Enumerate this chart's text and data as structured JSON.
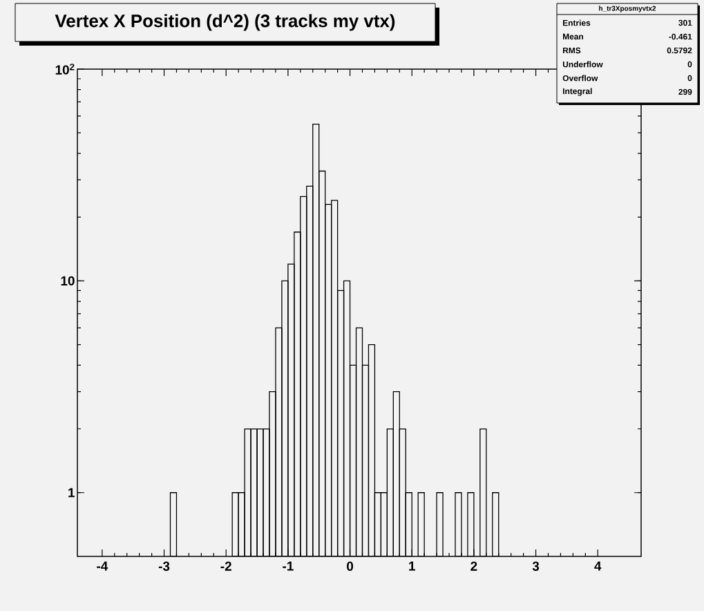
{
  "chart_data": {
    "type": "histogram",
    "title": "Vertex X Position (d^2) (3 tracks my vtx)",
    "bins": [
      -2.9,
      -2.8,
      -2.7,
      -2.6,
      -2.5,
      -2.4,
      -2.3,
      -2.2,
      -2.1,
      -2.0,
      -1.9,
      -1.8,
      -1.7,
      -1.6,
      -1.5,
      -1.4,
      -1.3,
      -1.2,
      -1.1,
      -1.0,
      -0.9,
      -0.8,
      -0.7,
      -0.6,
      -0.5,
      -0.4,
      -0.3,
      -0.2,
      -0.1,
      0.0,
      0.1,
      0.2,
      0.3,
      0.4,
      0.5,
      0.6,
      0.7,
      0.8,
      0.9,
      1.0,
      1.1,
      1.2,
      1.3,
      1.4,
      1.5,
      1.6,
      1.7,
      1.8,
      1.9,
      2.0,
      2.1,
      2.2,
      2.3,
      2.4
    ],
    "values": [
      1,
      null,
      null,
      null,
      null,
      null,
      null,
      null,
      null,
      null,
      1,
      1,
      2,
      2,
      2,
      2,
      3,
      6,
      10,
      12,
      17,
      25,
      28,
      55,
      33,
      23,
      24,
      9,
      10,
      4,
      6,
      4,
      5,
      1,
      1,
      2,
      3,
      2,
      1,
      null,
      1,
      null,
      null,
      1,
      null,
      null,
      1,
      null,
      1,
      null,
      2,
      null,
      1
    ],
    "color": "#000000",
    "xlim": [
      -4.4,
      4.7
    ],
    "ylim": [
      0.5,
      100
    ],
    "xticks": [
      -4,
      -3,
      -2,
      -1,
      0,
      1,
      2,
      3,
      4
    ],
    "yticks": [
      1,
      10,
      {
        "value": 100,
        "label": "10$^{2}$"
      }
    ],
    "log": "y",
    "grid": false,
    "annotations": [
      "h_tr3Xposmyvtx2",
      "Entries",
      "301",
      "Mean",
      "-0.461",
      "RMS",
      "0.5792",
      "Underflow",
      "0",
      "Overflow",
      "0",
      "Integral",
      "299"
    ]
  }
}
